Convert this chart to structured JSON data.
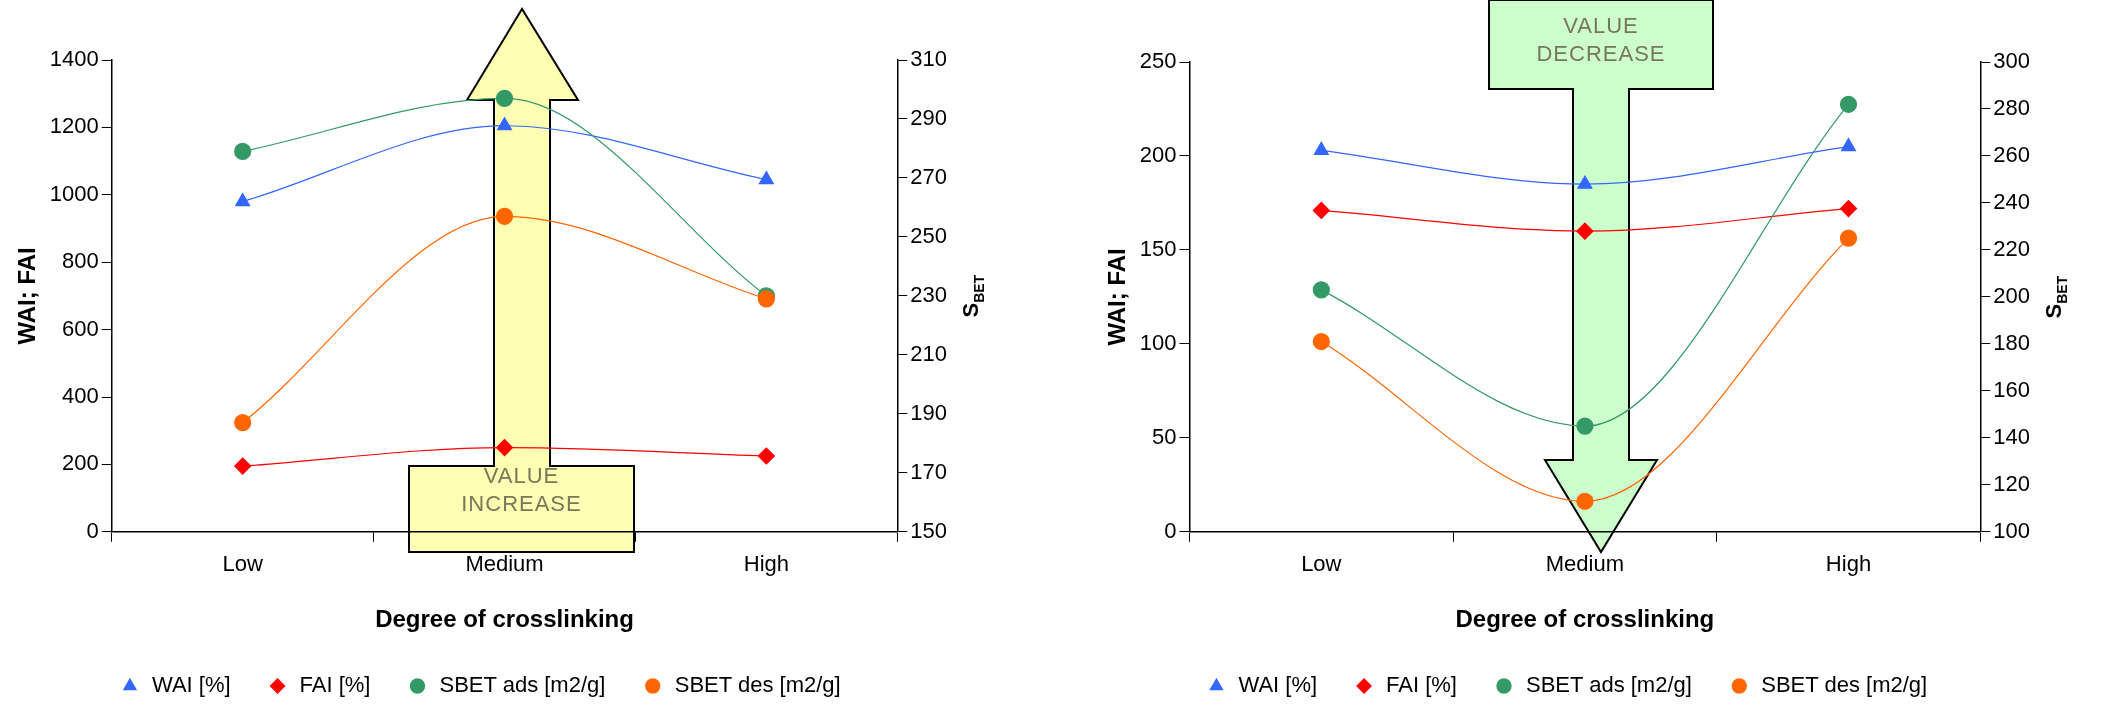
{
  "chart_data": [
    {
      "type": "line",
      "xlabel": "Degree of crosslinking",
      "ylabel": "WAI; FAI",
      "y2label": "S$_{BET}$",
      "categories": [
        "Low",
        "Medium",
        "High"
      ],
      "ylim": [
        0,
        1400
      ],
      "yticks": [
        0,
        200,
        400,
        600,
        800,
        1000,
        1200,
        1400
      ],
      "y2lim": [
        150,
        310
      ],
      "y2ticks": [
        150,
        170,
        190,
        210,
        230,
        250,
        270,
        290,
        310
      ],
      "grid": false,
      "legend": "bottom",
      "annotations": [
        "VALUE INCREASE"
      ],
      "series": [
        {
          "name": "WAI [%]",
          "color": "#3366ff",
          "marker": "triangle",
          "values": [
            980,
            1205,
            1045
          ]
        },
        {
          "name": "FAI [%]",
          "color": "#ff0000",
          "marker": "diamond",
          "values": [
            195,
            250,
            225
          ]
        },
        {
          "name": "SBET ads [m2/g]",
          "color": "#339966",
          "marker": "circle",
          "axis": "y2",
          "values": [
            279,
            297,
            230
          ]
        },
        {
          "name": "SBET des [m2/g]",
          "color": "#ff6600",
          "marker": "circle",
          "axis": "y2",
          "values": [
            187,
            257,
            229
          ]
        }
      ]
    },
    {
      "type": "line",
      "xlabel": "Degree of crosslinking",
      "ylabel": "WAI; FAI",
      "y2label": "S$_{BET}$",
      "categories": [
        "Low",
        "Medium",
        "High"
      ],
      "ylim": [
        0,
        250
      ],
      "yticks": [
        0,
        50,
        100,
        150,
        200,
        250
      ],
      "y2lim": [
        100,
        300
      ],
      "y2ticks": [
        100,
        120,
        140,
        160,
        180,
        200,
        220,
        240,
        260,
        280,
        300
      ],
      "grid": false,
      "legend": "bottom",
      "annotations": [
        "VALUE DECREASE"
      ],
      "series": [
        {
          "name": "WAI [%]",
          "color": "#3366ff",
          "marker": "triangle",
          "values": [
            203,
            185,
            205
          ]
        },
        {
          "name": "FAI [%]",
          "color": "#ff0000",
          "marker": "diamond",
          "values": [
            171,
            160,
            172
          ]
        },
        {
          "name": "SBET ads [m2/g]",
          "color": "#339966",
          "marker": "circle",
          "axis": "y2",
          "values": [
            203,
            145,
            282
          ]
        },
        {
          "name": "SBET des [m2/g]",
          "color": "#ff6600",
          "marker": "circle",
          "axis": "y2",
          "values": [
            181,
            113,
            225
          ]
        }
      ]
    }
  ]
}
